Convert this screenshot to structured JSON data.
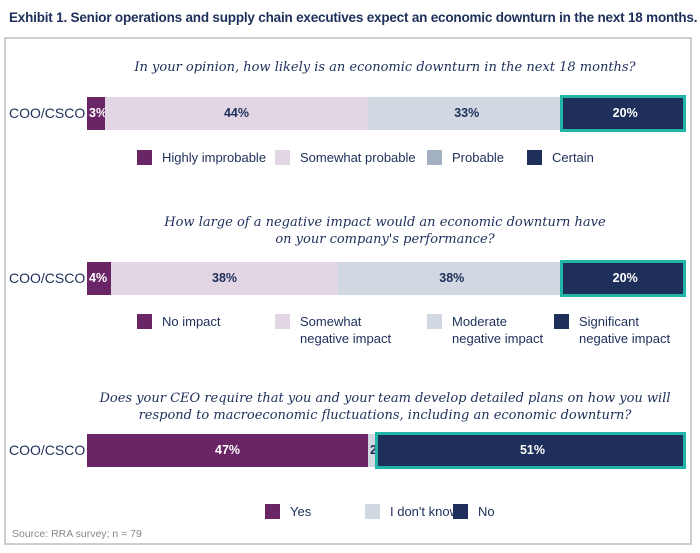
{
  "title": "Exhibit 1. Senior operations and supply chain executives expect an economic downturn in the next 18 months.",
  "source": "Source: RRA survey; n = 79",
  "chart_data": [
    {
      "type": "bar",
      "orientation": "horizontal-stacked-100",
      "question": "In your opinion, how likely is an economic downturn in the next 18 months?",
      "categories": [
        "COO/CSCO"
      ],
      "series": [
        {
          "name": "Highly improbable",
          "values": [
            3
          ],
          "label": "3%",
          "color": "#6a2566",
          "text_color": "#ffffff"
        },
        {
          "name": "Somewhat probable",
          "values": [
            44
          ],
          "label": "44%",
          "color": "#e3d6e4",
          "text_color": "#1d2f5a"
        },
        {
          "name": "Probable",
          "values": [
            33
          ],
          "label": "33%",
          "color": "#d1d8e1",
          "text_color": "#1d2f5a"
        },
        {
          "name": "Certain",
          "values": [
            20
          ],
          "label": "20%",
          "color": "#1d2f5a",
          "text_color": "#ffffff",
          "highlight": true
        }
      ],
      "legend": [
        "Highly improbable",
        "Somewhat probable",
        "Probable",
        "Certain"
      ],
      "legend_colors": [
        "#6a2566",
        "#e3d6e4",
        "#a3b0c2",
        "#1d2f5a"
      ]
    },
    {
      "type": "bar",
      "orientation": "horizontal-stacked-100",
      "question": [
        "How large of a negative impact would an economic downturn have",
        "on your company's performance?"
      ],
      "categories": [
        "COO/CSCO"
      ],
      "series": [
        {
          "name": "No impact",
          "values": [
            4
          ],
          "label": "4%",
          "color": "#6a2566",
          "text_color": "#ffffff"
        },
        {
          "name": "Somewhat negative impact",
          "values": [
            38
          ],
          "label": "38%",
          "color": "#e3d6e4",
          "text_color": "#1d2f5a"
        },
        {
          "name": "Moderate negative impact",
          "values": [
            38
          ],
          "label": "38%",
          "color": "#d1d8e1",
          "text_color": "#1d2f5a"
        },
        {
          "name": "Significant negative impact",
          "values": [
            20
          ],
          "label": "20%",
          "color": "#1d2f5a",
          "text_color": "#ffffff",
          "highlight": true
        }
      ],
      "legend": [
        [
          "No impact"
        ],
        [
          "Somewhat",
          "negative impact"
        ],
        [
          "Moderate",
          "negative impact"
        ],
        [
          "Significant",
          "negative impact"
        ]
      ],
      "legend_colors": [
        "#6a2566",
        "#e3d6e4",
        "#d1d8e1",
        "#1d2f5a"
      ]
    },
    {
      "type": "bar",
      "orientation": "horizontal-stacked-100",
      "question": [
        "Does your CEO require that you and your team develop detailed plans on how you will",
        "respond to macroeconomic fluctuations, including an economic downturn?"
      ],
      "categories": [
        "COO/CSCO"
      ],
      "series": [
        {
          "name": "Yes",
          "values": [
            47
          ],
          "label": "47%",
          "color": "#6a2566",
          "text_color": "#ffffff"
        },
        {
          "name": "I don't know",
          "values": [
            2
          ],
          "label": "2%",
          "color": "#d1d8e1",
          "text_color": "#1d2f5a"
        },
        {
          "name": "No",
          "values": [
            51
          ],
          "label": "51%",
          "color": "#1d2f5a",
          "text_color": "#ffffff",
          "highlight": true
        }
      ],
      "legend": [
        "Yes",
        "I don't know",
        "No"
      ],
      "legend_colors": [
        "#6a2566",
        "#d1d8e1",
        "#1d2f5a"
      ]
    }
  ],
  "colors": {
    "title": "#1d2f5a",
    "highlight_border": "#22b5a7"
  }
}
